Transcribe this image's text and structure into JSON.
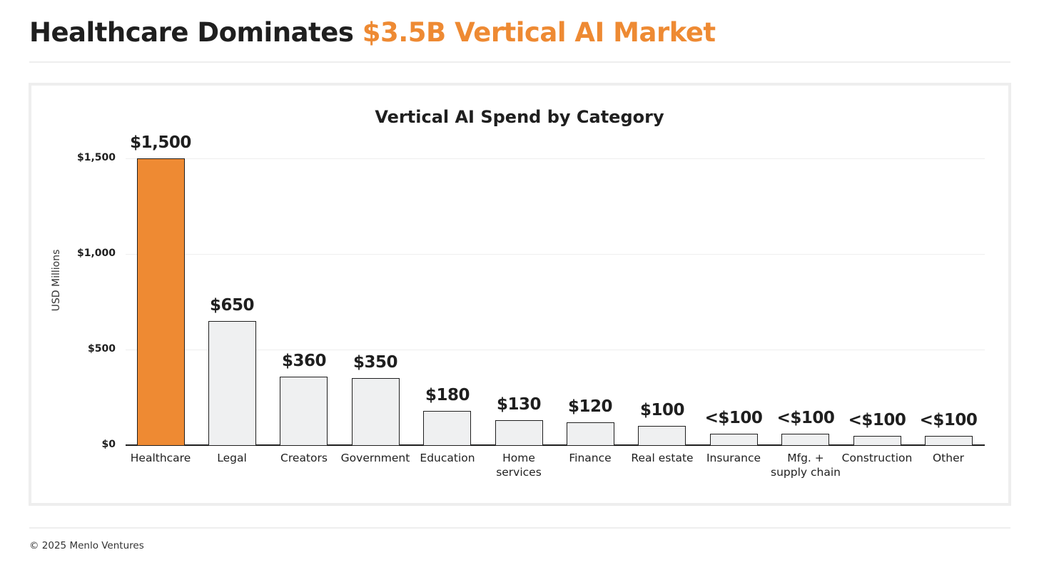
{
  "header": {
    "title_main": "Healthcare Dominates ",
    "title_accent": "$3.5B Vertical AI Market"
  },
  "colors": {
    "accent": "#ee8a33",
    "bar_default": "#eff0f1",
    "text": "#1f1f1f",
    "divider": "#eeeeee"
  },
  "footer": {
    "copyright": "© 2025 Menlo Ventures"
  },
  "chart_data": {
    "type": "bar",
    "title": "Vertical AI Spend by Category",
    "xlabel": "",
    "ylabel": "USD Millions",
    "ylim": [
      0,
      1500
    ],
    "yticks": [
      0,
      500,
      1000,
      1500
    ],
    "ytick_labels": [
      "$0",
      "$500",
      "$1,000",
      "$1,500"
    ],
    "grid": true,
    "legend": null,
    "categories": [
      "Healthcare",
      "Legal",
      "Creators",
      "Government",
      "Education",
      "Home services",
      "Finance",
      "Real estate",
      "Insurance",
      "Mfg. + supply chain",
      "Construction",
      "Other"
    ],
    "values": [
      1500,
      650,
      360,
      350,
      180,
      130,
      120,
      100,
      60,
      60,
      50,
      50
    ],
    "data_labels": [
      "$1,500",
      "$650",
      "$360",
      "$350",
      "$180",
      "$130",
      "$120",
      "$100",
      "<$100",
      "<$100",
      "<$100",
      "<$100"
    ],
    "highlighted_category": "Healthcare"
  },
  "chart": {
    "bars": [
      {
        "category": "Healthcare",
        "label_lines": [
          "Healthcare"
        ],
        "value": 1500,
        "display": "$1,500",
        "highlight": true
      },
      {
        "category": "Legal",
        "label_lines": [
          "Legal"
        ],
        "value": 650,
        "display": "$650"
      },
      {
        "category": "Creators",
        "label_lines": [
          "Creators"
        ],
        "value": 360,
        "display": "$360"
      },
      {
        "category": "Government",
        "label_lines": [
          "Government"
        ],
        "value": 350,
        "display": "$350"
      },
      {
        "category": "Education",
        "label_lines": [
          "Education"
        ],
        "value": 180,
        "display": "$180"
      },
      {
        "category": "Home services",
        "label_lines": [
          "Home",
          "services"
        ],
        "value": 130,
        "display": "$130"
      },
      {
        "category": "Finance",
        "label_lines": [
          "Finance"
        ],
        "value": 120,
        "display": "$120"
      },
      {
        "category": "Real estate",
        "label_lines": [
          "Real estate"
        ],
        "value": 100,
        "display": "$100"
      },
      {
        "category": "Insurance",
        "label_lines": [
          "Insurance"
        ],
        "value": 60,
        "display": "<$100"
      },
      {
        "category": "Mfg. + supply chain",
        "label_lines": [
          "Mfg. +",
          "supply chain"
        ],
        "value": 60,
        "display": "<$100"
      },
      {
        "category": "Construction",
        "label_lines": [
          "Construction"
        ],
        "value": 50,
        "display": "<$100"
      },
      {
        "category": "Other",
        "label_lines": [
          "Other"
        ],
        "value": 50,
        "display": "<$100"
      }
    ]
  }
}
